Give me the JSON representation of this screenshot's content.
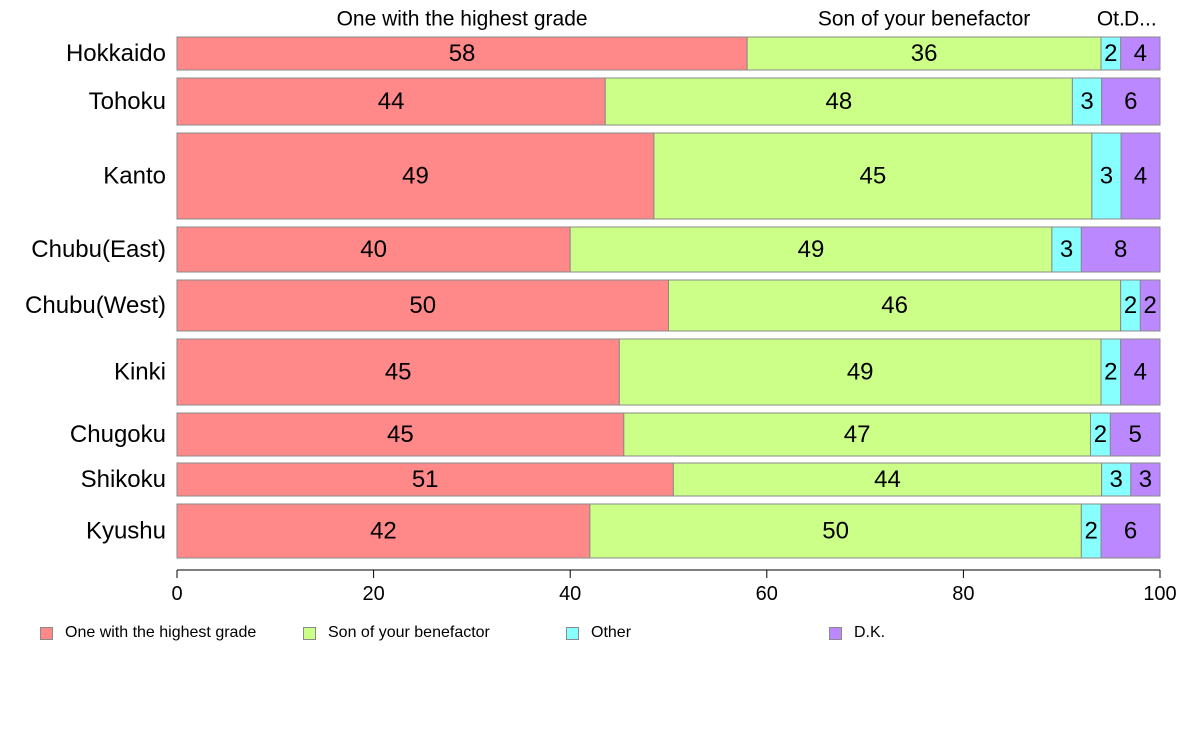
{
  "chart_data": {
    "type": "bar",
    "orientation": "horizontal",
    "stacked": true,
    "categories": [
      "Hokkaido",
      "Tohoku",
      "Kanto",
      "Chubu(East)",
      "Chubu(West)",
      "Kinki",
      "Chugoku",
      "Shikoku",
      "Kyushu"
    ],
    "series": [
      {
        "name": "One with the highest grade",
        "color": "#ff8888",
        "values": [
          58,
          44,
          49,
          40,
          50,
          45,
          45,
          51,
          42
        ]
      },
      {
        "name": "Son of your benefactor",
        "color": "#ccff88",
        "values": [
          36,
          48,
          45,
          49,
          46,
          49,
          47,
          44,
          50
        ]
      },
      {
        "name": "Other",
        "color": "#88ffff",
        "values": [
          2,
          3,
          3,
          3,
          2,
          2,
          2,
          3,
          2
        ]
      },
      {
        "name": "D.K.",
        "color": "#bb88ff",
        "values": [
          4,
          6,
          4,
          8,
          2,
          4,
          5,
          3,
          6
        ]
      }
    ],
    "top_labels": [
      "One with the highest grade",
      "Son of your benefactor",
      "Ot.",
      "D..."
    ],
    "xlim": [
      0,
      100
    ],
    "xticks": [
      0,
      20,
      40,
      60,
      80,
      100
    ],
    "grid": false,
    "legend_position": "bottom",
    "title": "",
    "xlabel": "",
    "ylabel": ""
  }
}
